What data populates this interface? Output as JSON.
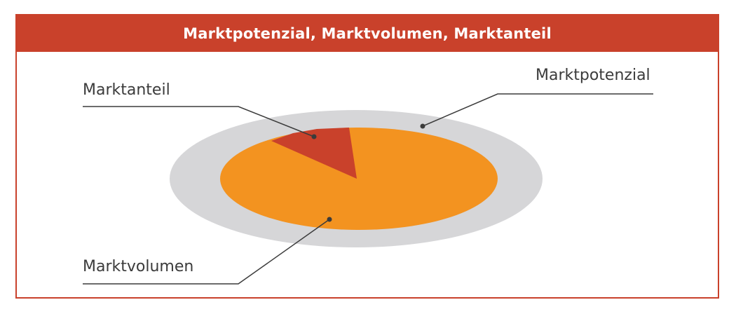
{
  "header": {
    "title": "Marktpotenzial, Marktvolumen, Marktanteil"
  },
  "labels": {
    "marktanteil": "Marktanteil",
    "marktpotenzial": "Marktpotenzial",
    "marktvolumen": "Marktvolumen"
  },
  "colors": {
    "accent": "#c9412b",
    "potenzial": "#d6d6d8",
    "volumen": "#f39320",
    "anteil": "#c9412b",
    "text": "#3b3b3b",
    "leader": "#3b3b3b"
  }
}
